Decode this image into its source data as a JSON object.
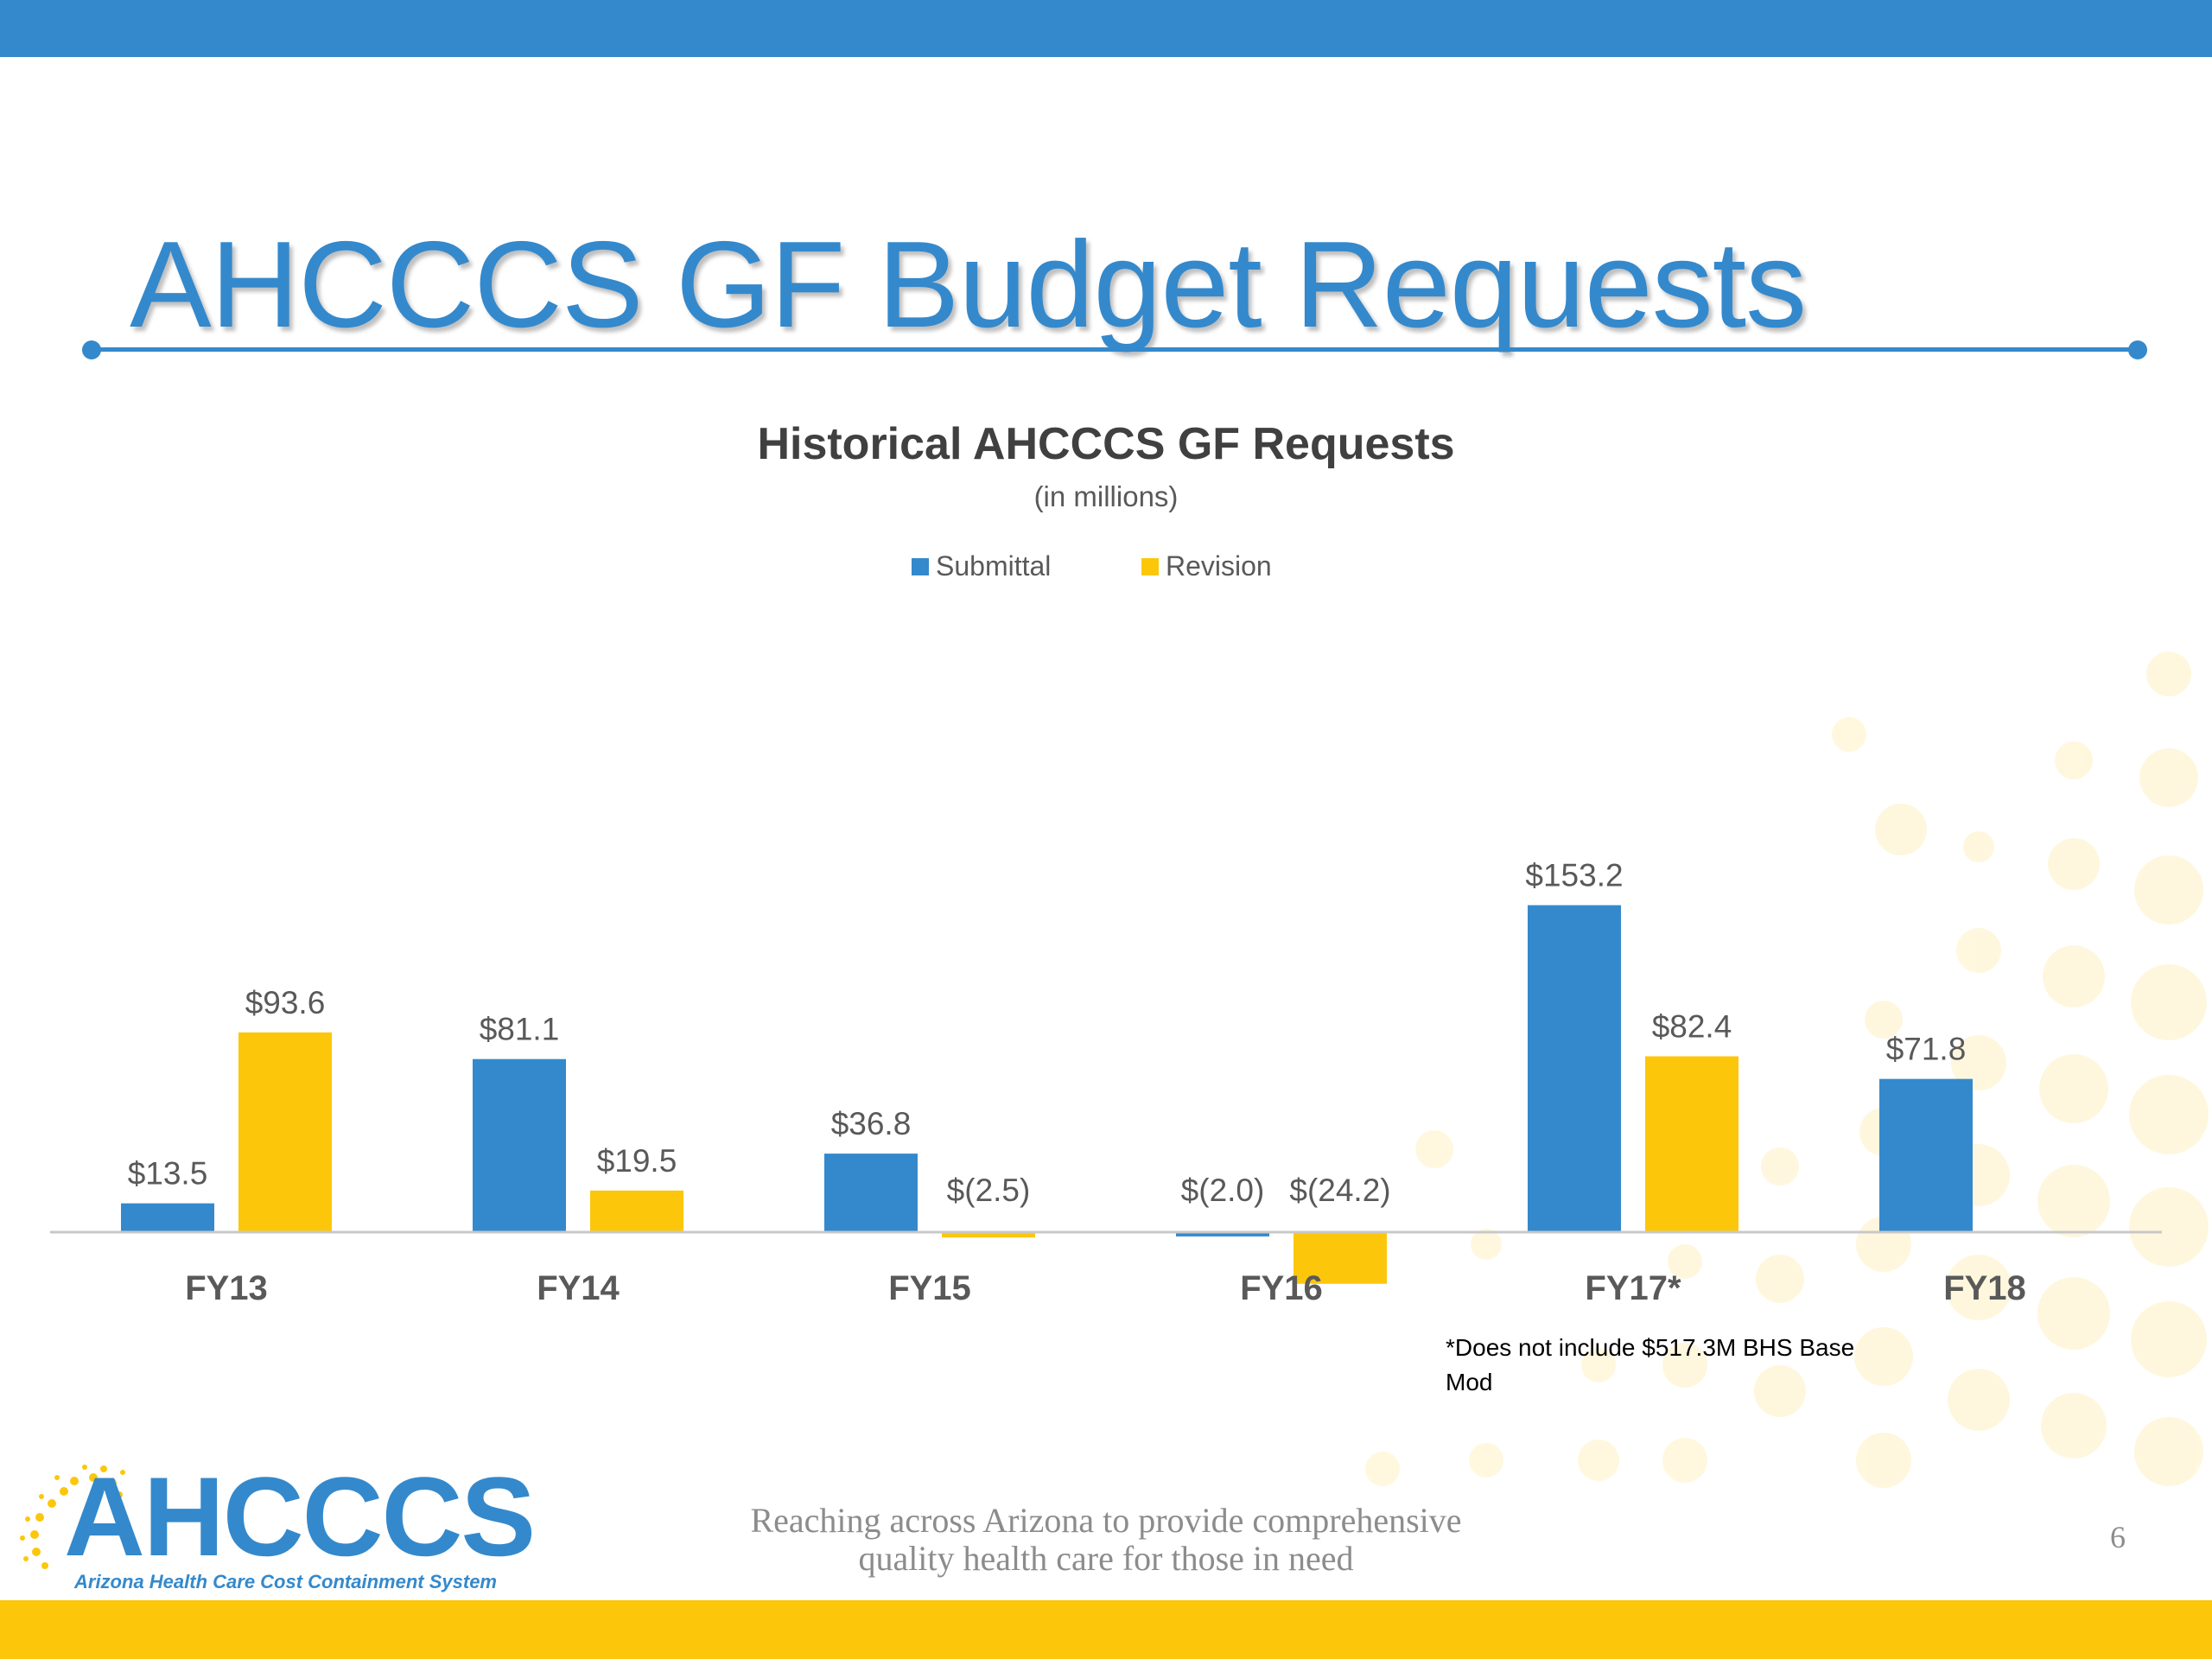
{
  "slide": {
    "title": "AHCCCS GF Budget Requests",
    "footnote": "*Does not include $517.3M BHS Base Mod",
    "tagline_line1": "Reaching across Arizona to provide comprehensive",
    "tagline_line2": "quality health care for those in need",
    "page_number": "6",
    "logo_text": "AHCCCS",
    "logo_subtitle": "Arizona Health Care Cost Containment System"
  },
  "colors": {
    "submittal": "#3489cc",
    "revision": "#fcc70b",
    "brand_blue": "#3489cc",
    "brand_yellow": "#fcc70b"
  },
  "chart_data": {
    "type": "bar",
    "title": "Historical AHCCCS GF Requests",
    "subtitle": "(in millions)",
    "legend_position": "top-center",
    "grid": false,
    "categories": [
      "FY13",
      "FY14",
      "FY15",
      "FY16",
      "FY17*",
      "FY18"
    ],
    "series": [
      {
        "name": "Submittal",
        "values": [
          13.5,
          81.1,
          36.8,
          -2.0,
          153.2,
          71.8
        ],
        "labels": [
          "$13.5",
          "$81.1",
          "$36.8",
          "$(2.0)",
          "$153.2",
          "$71.8"
        ]
      },
      {
        "name": "Revision",
        "values": [
          93.6,
          19.5,
          -2.5,
          -24.2,
          82.4,
          null
        ],
        "labels": [
          "$93.6",
          "$19.5",
          "$(2.5)",
          "$(24.2)",
          "$82.4",
          null
        ]
      }
    ]
  }
}
